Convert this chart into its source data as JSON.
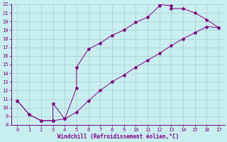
{
  "xlabel": "Windchill (Refroidissement éolien,°C)",
  "xlim": [
    -0.5,
    17.5
  ],
  "ylim": [
    8,
    22
  ],
  "xticks": [
    0,
    1,
    2,
    3,
    4,
    5,
    6,
    7,
    8,
    9,
    10,
    11,
    12,
    13,
    14,
    15,
    16,
    17
  ],
  "yticks": [
    8,
    9,
    10,
    11,
    12,
    13,
    14,
    15,
    16,
    17,
    18,
    19,
    20,
    21,
    22
  ],
  "bg_color": "#c8eef0",
  "line_color": "#800080",
  "grid_color": "#aacccc",
  "upper_x": [
    0,
    1,
    2,
    3,
    3,
    4,
    5,
    5,
    6,
    7,
    8,
    9,
    10,
    11,
    12,
    12,
    13,
    13,
    14,
    15,
    16,
    17
  ],
  "upper_y": [
    10.8,
    9.2,
    8.5,
    8.5,
    10.5,
    8.7,
    12.3,
    14.7,
    16.8,
    17.5,
    18.4,
    19.0,
    19.9,
    20.5,
    21.8,
    22.0,
    21.8,
    21.5,
    21.5,
    21.0,
    20.2,
    19.3
  ],
  "lower_x": [
    0,
    1,
    2,
    3,
    4,
    5,
    6,
    7,
    8,
    9,
    10,
    11,
    12,
    13,
    14,
    15,
    16,
    17
  ],
  "lower_y": [
    10.8,
    9.2,
    8.5,
    8.5,
    8.7,
    9.5,
    10.8,
    12.0,
    13.0,
    13.8,
    14.7,
    15.5,
    16.3,
    17.2,
    18.0,
    18.7,
    19.4,
    19.3
  ]
}
